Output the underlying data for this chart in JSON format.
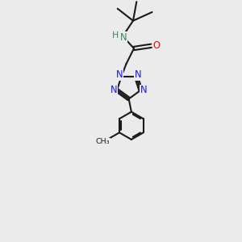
{
  "background_color": "#ebebeb",
  "bond_color": "#1a1a1a",
  "nitrogen_color": "#1414ff",
  "oxygen_color": "#ff0000",
  "nh_color": "#2e8b57",
  "line_width": 1.5,
  "figsize": [
    3.0,
    3.0
  ],
  "dpi": 100,
  "xlim": [
    0,
    10
  ],
  "ylim": [
    0,
    14
  ]
}
